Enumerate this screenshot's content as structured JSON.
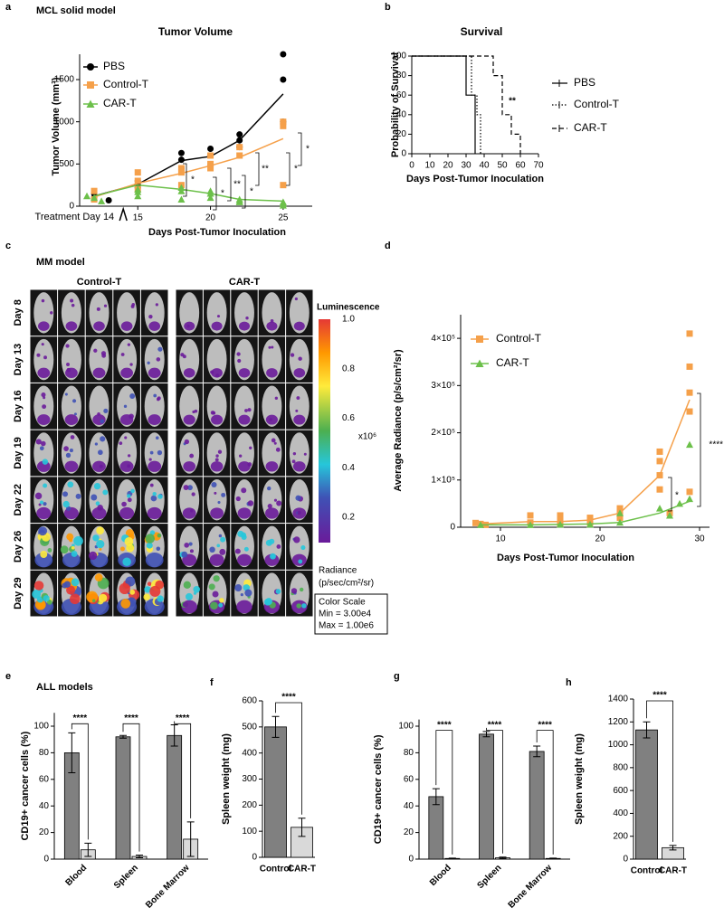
{
  "chart_data": [
    {
      "panel": "a",
      "section": "MCL solid model",
      "type": "line",
      "title": "Tumor Volume",
      "xlabel": "Days Post-Tumor Inoculation",
      "ylabel": "Tumor Volume (mm³)",
      "annotation": "Treatment Day 14",
      "treatment_day": 14,
      "xlim": [
        11,
        27
      ],
      "xticks": [
        15,
        20,
        25
      ],
      "ylim": [
        0,
        1800
      ],
      "yticks": [
        0,
        500,
        1000,
        1500
      ],
      "x": [
        12,
        15,
        18,
        20,
        22,
        25
      ],
      "series": [
        {
          "name": "PBS",
          "color": "#000000",
          "marker": "circle",
          "values": [
            120,
            260,
            540,
            590,
            780,
            1330
          ],
          "points_x": [
            12,
            12,
            13,
            15,
            15,
            15,
            18,
            18,
            18,
            20,
            20,
            20,
            22,
            22,
            22,
            25,
            25,
            25
          ],
          "points_y": [
            150,
            100,
            70,
            250,
            300,
            220,
            630,
            450,
            550,
            680,
            600,
            480,
            850,
            780,
            700,
            1800,
            1500,
            1000
          ]
        },
        {
          "name": "Control-T",
          "color": "#f5a04a",
          "marker": "square",
          "values": [
            110,
            270,
            390,
            480,
            580,
            800
          ],
          "points_x": [
            12,
            12,
            15,
            15,
            15,
            18,
            18,
            18,
            20,
            20,
            20,
            22,
            22,
            25,
            25,
            25
          ],
          "points_y": [
            180,
            80,
            400,
            300,
            200,
            450,
            400,
            250,
            600,
            500,
            450,
            700,
            600,
            1000,
            950,
            250
          ]
        },
        {
          "name": "CAR-T",
          "color": "#6cc04a",
          "marker": "triangle",
          "values": [
            120,
            250,
            200,
            150,
            80,
            60
          ],
          "points_x": [
            11.5,
            12,
            12.5,
            15,
            15,
            15,
            18,
            18,
            18,
            20,
            20,
            20,
            22,
            22,
            22,
            25,
            25,
            25
          ],
          "points_y": [
            120,
            100,
            60,
            200,
            170,
            120,
            220,
            180,
            80,
            180,
            150,
            100,
            80,
            60,
            50,
            50,
            30,
            10
          ]
        }
      ],
      "significance": [
        "*",
        "*",
        "**",
        "*",
        "**",
        "*",
        "*"
      ]
    },
    {
      "panel": "b",
      "type": "step",
      "title": "Survival",
      "xlabel": "Days Post-Tumor Inoculation",
      "ylabel": "Probability of Survival",
      "xlim": [
        0,
        70
      ],
      "xticks": [
        0,
        10,
        20,
        30,
        40,
        50,
        60,
        70
      ],
      "ylim": [
        0,
        100
      ],
      "yticks": [
        0,
        20,
        40,
        60,
        80,
        100
      ],
      "series": [
        {
          "name": "PBS",
          "dash": "solid",
          "x": [
            0,
            30,
            35
          ],
          "values": [
            100,
            60,
            0
          ]
        },
        {
          "name": "Control-T",
          "dash": "dotted",
          "x": [
            0,
            33,
            36,
            38
          ],
          "values": [
            100,
            60,
            40,
            0
          ]
        },
        {
          "name": "CAR-T",
          "dash": "dashed",
          "x": [
            0,
            45,
            50,
            55,
            60
          ],
          "values": [
            100,
            80,
            40,
            20,
            0
          ]
        }
      ],
      "significance": [
        "**"
      ]
    },
    {
      "panel": "d",
      "type": "line",
      "xlabel": "Days Post-Tumor Inoculation",
      "ylabel": "Average Radiance (p/s/cm²/sr)",
      "xlim": [
        6,
        31
      ],
      "xticks": [
        10,
        20,
        30
      ],
      "ylim": [
        0,
        450000
      ],
      "yticks": [
        0,
        {
          "value": 100000,
          "label": "1×10⁵"
        },
        {
          "value": 200000,
          "label": "2×10⁵"
        },
        {
          "value": 300000,
          "label": "3×10⁵"
        },
        {
          "value": 400000,
          "label": "4×10⁵"
        }
      ],
      "x": [
        8,
        13,
        16,
        19,
        22,
        26,
        29
      ],
      "series": [
        {
          "name": "Control-T",
          "color": "#f5a04a",
          "marker": "square",
          "values": [
            7000,
            12000,
            12000,
            15000,
            30000,
            110000,
            270000
          ],
          "points_x": [
            7.5,
            8,
            8.5,
            13,
            13,
            16,
            16,
            16,
            19,
            19,
            22,
            22,
            22,
            26,
            26,
            26,
            26,
            27,
            29,
            29,
            29,
            29,
            29
          ],
          "points_y": [
            9000,
            7000,
            5000,
            25000,
            10000,
            25000,
            15000,
            8000,
            20000,
            10000,
            40000,
            30000,
            20000,
            160000,
            140000,
            110000,
            80000,
            30000,
            410000,
            340000,
            285000,
            245000,
            75000
          ]
        },
        {
          "name": "CAR-T",
          "color": "#6cc04a",
          "marker": "triangle",
          "values": [
            5000,
            5000,
            6000,
            7000,
            10000,
            30000,
            55000
          ],
          "points_x": [
            8,
            13,
            16,
            19,
            22,
            22,
            26,
            27,
            28,
            29,
            29
          ],
          "points_y": [
            5000,
            5000,
            6000,
            6000,
            10000,
            30000,
            40000,
            25000,
            50000,
            175000,
            60000
          ]
        }
      ],
      "significance": [
        "*",
        "****"
      ]
    },
    {
      "panel": "e",
      "section": "ALL models",
      "type": "bar",
      "ylabel": "CD19+ cancer cells (%)",
      "categories": [
        "Blood",
        "Spleen",
        "Bone Marrow"
      ],
      "ylim": [
        0,
        110
      ],
      "yticks": [
        0,
        20,
        40,
        60,
        80,
        100
      ],
      "series": [
        {
          "color": "#808080",
          "values": [
            80,
            92,
            93
          ],
          "errors": [
            15,
            1,
            8
          ]
        },
        {
          "color": "#d9d9d9",
          "values": [
            7,
            2,
            15
          ],
          "errors": [
            5,
            1,
            13
          ]
        }
      ],
      "significance": [
        "****",
        "****",
        "****"
      ]
    },
    {
      "panel": "f",
      "type": "bar",
      "ylabel": "Spleen weight (mg)",
      "categories": [
        "Control",
        "CAR-T"
      ],
      "values": [
        500,
        115
      ],
      "errors": [
        40,
        35
      ],
      "colors": [
        "#808080",
        "#d9d9d9"
      ],
      "ylim": [
        0,
        600
      ],
      "yticks": [
        0,
        100,
        200,
        300,
        400,
        500,
        600
      ],
      "significance": [
        "****"
      ]
    },
    {
      "panel": "g",
      "type": "bar",
      "ylabel": "CD19+ cancer cells (%)",
      "categories": [
        "Blood",
        "Spleen",
        "Bone Marrow"
      ],
      "ylim": [
        0,
        105
      ],
      "yticks": [
        0,
        20,
        40,
        60,
        80,
        100
      ],
      "series": [
        {
          "color": "#808080",
          "values": [
            47,
            94,
            81
          ],
          "errors": [
            6,
            2,
            4
          ]
        },
        {
          "color": "#d9d9d9",
          "values": [
            0.5,
            1,
            0.5
          ],
          "errors": [
            0.3,
            0.5,
            0.3
          ]
        }
      ],
      "significance": [
        "****",
        "****",
        "****"
      ]
    },
    {
      "panel": "h",
      "type": "bar",
      "ylabel": "Spleen weight (mg)",
      "categories": [
        "Control",
        "CAR-T"
      ],
      "values": [
        1130,
        100
      ],
      "errors": [
        70,
        20
      ],
      "colors": [
        "#808080",
        "#d9d9d9"
      ],
      "ylim": [
        0,
        1400
      ],
      "yticks": [
        0,
        200,
        400,
        600,
        800,
        1000,
        1200,
        1400
      ],
      "significance": [
        "****"
      ]
    }
  ],
  "imaging": {
    "panel": "c",
    "section": "MM model",
    "groups": [
      "Control-T",
      "CAR-T"
    ],
    "days": [
      "Day 8",
      "Day 13",
      "Day 16",
      "Day 19",
      "Day 22",
      "Day 26",
      "Day 29"
    ],
    "colorbar": {
      "title": "Luminescence",
      "ticks": [
        "1.0",
        "0.8",
        "0.6",
        "0.4",
        "0.2"
      ],
      "unit": "x10⁶",
      "label": "Radiance",
      "label_unit": "(p/sec/cm²/sr)",
      "scale": [
        "Color Scale",
        "Min = 3.00e4",
        "Max = 1.00e6"
      ]
    }
  }
}
